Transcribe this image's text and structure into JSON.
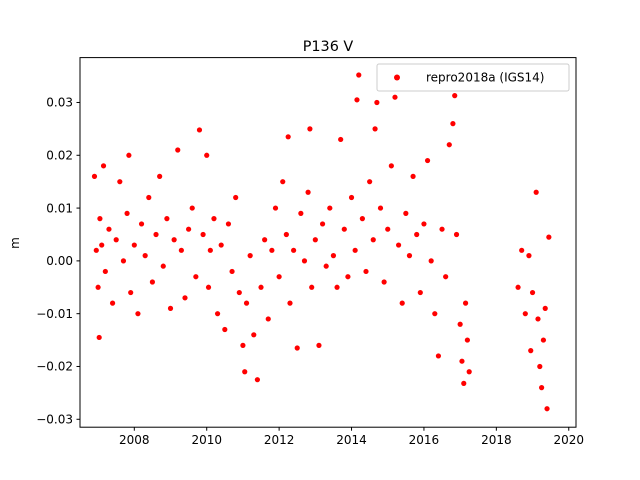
{
  "chart_data": {
    "type": "scatter",
    "title": "P136 V",
    "xlabel": "",
    "ylabel": "m",
    "xlim": [
      2006.5,
      2020.2
    ],
    "ylim": [
      -0.0315,
      0.0385
    ],
    "x_ticks": [
      2008,
      2010,
      2012,
      2014,
      2016,
      2018,
      2020
    ],
    "y_ticks": [
      -0.03,
      -0.02,
      -0.01,
      0.0,
      0.01,
      0.02,
      0.03
    ],
    "x_tick_labels": [
      "2008",
      "2010",
      "2012",
      "2014",
      "2016",
      "2018",
      "2020"
    ],
    "y_tick_labels": [
      "−0.03",
      "−0.02",
      "−0.01",
      "0.00",
      "0.01",
      "0.02",
      "0.03"
    ],
    "grid": false,
    "legend_position": "top-right",
    "marker_color": "#ff0000",
    "series": [
      {
        "name": "repro2018a (IGS14)",
        "color": "#ff0000",
        "points": [
          [
            2006.9,
            0.016
          ],
          [
            2006.95,
            0.002
          ],
          [
            2007.0,
            -0.005
          ],
          [
            2007.03,
            -0.0145
          ],
          [
            2007.05,
            0.008
          ],
          [
            2007.1,
            0.003
          ],
          [
            2007.15,
            0.018
          ],
          [
            2007.2,
            -0.002
          ],
          [
            2007.3,
            0.006
          ],
          [
            2007.4,
            -0.008
          ],
          [
            2007.5,
            0.004
          ],
          [
            2007.6,
            0.015
          ],
          [
            2007.7,
            0.0
          ],
          [
            2007.8,
            0.009
          ],
          [
            2007.85,
            0.02
          ],
          [
            2007.9,
            -0.006
          ],
          [
            2008.0,
            0.003
          ],
          [
            2008.1,
            -0.01
          ],
          [
            2008.2,
            0.007
          ],
          [
            2008.3,
            0.001
          ],
          [
            2008.4,
            0.012
          ],
          [
            2008.5,
            -0.004
          ],
          [
            2008.6,
            0.005
          ],
          [
            2008.7,
            0.016
          ],
          [
            2008.8,
            -0.001
          ],
          [
            2008.9,
            0.008
          ],
          [
            2009.0,
            -0.009
          ],
          [
            2009.1,
            0.004
          ],
          [
            2009.2,
            0.021
          ],
          [
            2009.3,
            0.002
          ],
          [
            2009.4,
            -0.007
          ],
          [
            2009.5,
            0.006
          ],
          [
            2009.6,
            0.01
          ],
          [
            2009.7,
            -0.003
          ],
          [
            2009.8,
            0.0248
          ],
          [
            2009.9,
            0.005
          ],
          [
            2010.0,
            0.02
          ],
          [
            2010.05,
            -0.005
          ],
          [
            2010.1,
            0.002
          ],
          [
            2010.2,
            0.008
          ],
          [
            2010.3,
            -0.01
          ],
          [
            2010.4,
            0.003
          ],
          [
            2010.5,
            -0.013
          ],
          [
            2010.6,
            0.007
          ],
          [
            2010.7,
            -0.002
          ],
          [
            2010.8,
            0.012
          ],
          [
            2010.9,
            -0.006
          ],
          [
            2011.0,
            -0.016
          ],
          [
            2011.05,
            -0.021
          ],
          [
            2011.1,
            -0.008
          ],
          [
            2011.2,
            0.001
          ],
          [
            2011.3,
            -0.014
          ],
          [
            2011.4,
            -0.0225
          ],
          [
            2011.5,
            -0.005
          ],
          [
            2011.6,
            0.004
          ],
          [
            2011.7,
            -0.011
          ],
          [
            2011.8,
            0.002
          ],
          [
            2011.9,
            0.01
          ],
          [
            2012.0,
            -0.003
          ],
          [
            2012.1,
            0.015
          ],
          [
            2012.2,
            0.005
          ],
          [
            2012.25,
            0.0235
          ],
          [
            2012.3,
            -0.008
          ],
          [
            2012.4,
            0.002
          ],
          [
            2012.5,
            -0.0165
          ],
          [
            2012.6,
            0.009
          ],
          [
            2012.7,
            0.0
          ],
          [
            2012.8,
            0.013
          ],
          [
            2012.85,
            0.025
          ],
          [
            2012.9,
            -0.005
          ],
          [
            2013.0,
            0.004
          ],
          [
            2013.1,
            -0.016
          ],
          [
            2013.2,
            0.007
          ],
          [
            2013.3,
            -0.001
          ],
          [
            2013.4,
            0.01
          ],
          [
            2013.5,
            0.001
          ],
          [
            2013.6,
            -0.005
          ],
          [
            2013.7,
            0.023
          ],
          [
            2013.8,
            0.006
          ],
          [
            2013.9,
            -0.003
          ],
          [
            2014.0,
            0.012
          ],
          [
            2014.1,
            0.002
          ],
          [
            2014.15,
            0.0305
          ],
          [
            2014.2,
            0.0352
          ],
          [
            2014.3,
            0.008
          ],
          [
            2014.4,
            -0.002
          ],
          [
            2014.5,
            0.015
          ],
          [
            2014.6,
            0.004
          ],
          [
            2014.65,
            0.025
          ],
          [
            2014.7,
            0.03
          ],
          [
            2014.8,
            0.01
          ],
          [
            2014.9,
            -0.004
          ],
          [
            2015.0,
            0.006
          ],
          [
            2015.1,
            0.018
          ],
          [
            2015.2,
            0.031
          ],
          [
            2015.3,
            0.003
          ],
          [
            2015.4,
            -0.008
          ],
          [
            2015.5,
            0.009
          ],
          [
            2015.6,
            0.001
          ],
          [
            2015.7,
            0.016
          ],
          [
            2015.8,
            0.005
          ],
          [
            2015.9,
            -0.006
          ],
          [
            2016.0,
            0.007
          ],
          [
            2016.1,
            0.019
          ],
          [
            2016.2,
            0.0
          ],
          [
            2016.3,
            -0.01
          ],
          [
            2016.4,
            -0.018
          ],
          [
            2016.5,
            0.006
          ],
          [
            2016.6,
            -0.003
          ],
          [
            2016.7,
            0.022
          ],
          [
            2016.8,
            0.026
          ],
          [
            2016.85,
            0.0313
          ],
          [
            2016.9,
            0.005
          ],
          [
            2017.0,
            -0.012
          ],
          [
            2017.05,
            -0.019
          ],
          [
            2017.1,
            -0.0232
          ],
          [
            2017.15,
            -0.008
          ],
          [
            2017.2,
            -0.015
          ],
          [
            2017.25,
            -0.021
          ],
          [
            2018.6,
            -0.005
          ],
          [
            2018.7,
            0.002
          ],
          [
            2018.8,
            -0.01
          ],
          [
            2018.9,
            0.001
          ],
          [
            2018.95,
            -0.017
          ],
          [
            2019.0,
            -0.006
          ],
          [
            2019.1,
            0.013
          ],
          [
            2019.15,
            -0.011
          ],
          [
            2019.2,
            -0.02
          ],
          [
            2019.25,
            -0.024
          ],
          [
            2019.3,
            -0.015
          ],
          [
            2019.35,
            -0.009
          ],
          [
            2019.4,
            -0.028
          ],
          [
            2019.45,
            0.0045
          ]
        ]
      }
    ]
  }
}
